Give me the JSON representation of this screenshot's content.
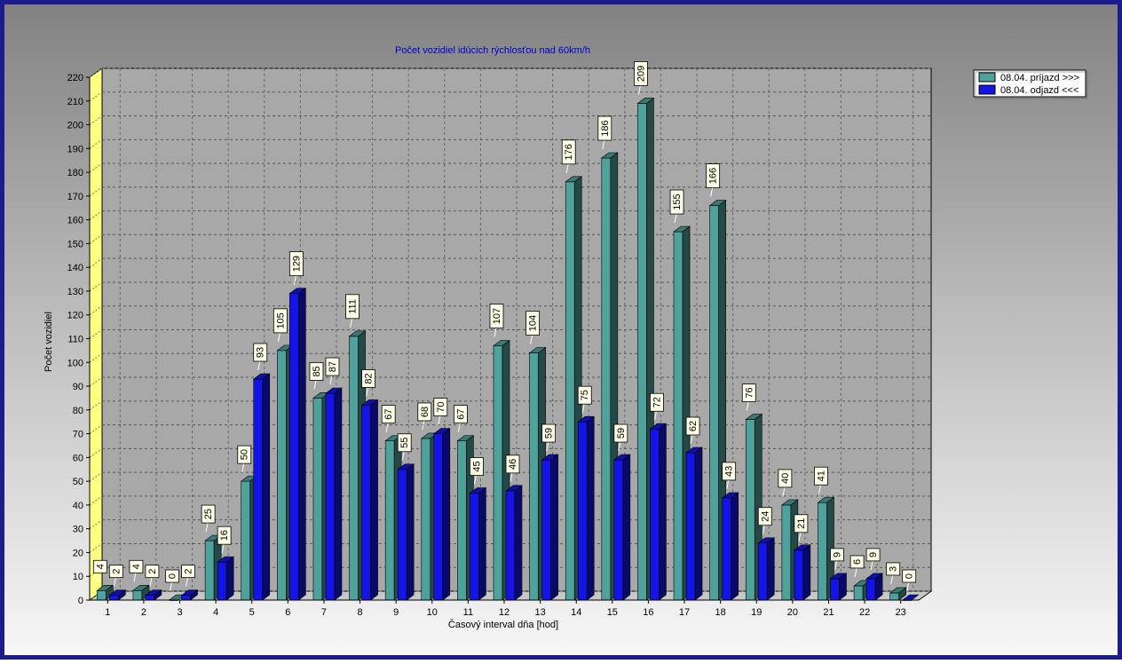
{
  "chart_data": {
    "type": "bar",
    "title": "Počet vozidiel idúcich rýchlosťou nad 60km/h",
    "xlabel": "Časový interval dňa [hod]",
    "ylabel": "Počet vozidiel",
    "ylim": [
      0,
      220
    ],
    "yticks": [
      0,
      10,
      20,
      30,
      40,
      50,
      60,
      70,
      80,
      90,
      100,
      110,
      120,
      130,
      140,
      150,
      160,
      170,
      180,
      190,
      200,
      210,
      220
    ],
    "grid": true,
    "legend_position": "top-right",
    "categories": [
      "1",
      "2",
      "3",
      "4",
      "5",
      "6",
      "7",
      "8",
      "9",
      "10",
      "11",
      "12",
      "13",
      "14",
      "15",
      "16",
      "17",
      "18",
      "19",
      "20",
      "21",
      "22",
      "23"
    ],
    "series": [
      {
        "name": "08.04. príjazd >>>",
        "color": "#4fa29b",
        "values": [
          4,
          4,
          0,
          25,
          50,
          105,
          85,
          111,
          67,
          68,
          67,
          107,
          104,
          176,
          186,
          209,
          155,
          166,
          76,
          40,
          41,
          6,
          3
        ]
      },
      {
        "name": "08.04. odjazd <<<",
        "color": "#1414e6",
        "values": [
          2,
          2,
          2,
          16,
          93,
          129,
          87,
          82,
          55,
          70,
          45,
          46,
          59,
          75,
          59,
          72,
          62,
          43,
          24,
          21,
          9,
          9,
          0
        ]
      }
    ],
    "data_labels": [
      [
        "4",
        "4",
        "0",
        "25",
        "50",
        "105",
        "85",
        "111",
        "67",
        "68",
        "67",
        "107",
        "104",
        "176",
        "186",
        "209",
        "155",
        "166",
        "76",
        "40",
        "41",
        "6",
        "3"
      ],
      [
        "2",
        "2",
        "2",
        "16",
        "93",
        "129",
        "87",
        "82",
        "55",
        "70",
        "45",
        "46",
        "59",
        "75",
        "59",
        "72",
        "62",
        "43",
        "24",
        "21",
        "9",
        "9",
        "0"
      ]
    ]
  }
}
